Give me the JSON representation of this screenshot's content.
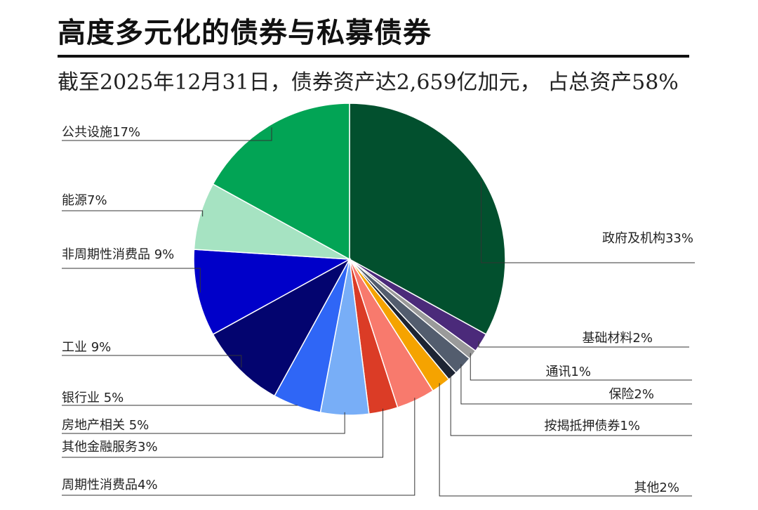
{
  "header": {
    "title": "高度多元化的债券与私募债券",
    "subtitle": "截至2025年12月31日，债券资产达2,659亿加元， 占总资产58%"
  },
  "chart_data": {
    "type": "pie",
    "slices": [
      {
        "label": "政府及机构33%",
        "value": 33,
        "color": "#02502e"
      },
      {
        "label": "基础材料2%",
        "value": 2,
        "color": "#4b2a7a"
      },
      {
        "label": "通讯1%",
        "value": 1,
        "color": "#9a9a9a"
      },
      {
        "label": "保险2%",
        "value": 2,
        "color": "#535d6e"
      },
      {
        "label": "按揭抵押债券1%",
        "value": 1,
        "color": "#1d2433"
      },
      {
        "label": "其他2%",
        "value": 2,
        "color": "#f5a300"
      },
      {
        "label": "周期性消费品4%",
        "value": 4,
        "color": "#f87a6d"
      },
      {
        "label": "其他金融服务3%",
        "value": 3,
        "color": "#db3c26"
      },
      {
        "label": "房地产相关 5%",
        "value": 5,
        "color": "#78aef7"
      },
      {
        "label": "银行业 5%",
        "value": 5,
        "color": "#2f66f6"
      },
      {
        "label": "工业 9%",
        "value": 9,
        "color": "#03046f"
      },
      {
        "label": "非周期性消费品 9%",
        "value": 9,
        "color": "#0000c9"
      },
      {
        "label": "能源7%",
        "value": 7,
        "color": "#a6e3c2"
      },
      {
        "label": "公共设施17%",
        "value": 17,
        "color": "#02a455"
      }
    ]
  }
}
